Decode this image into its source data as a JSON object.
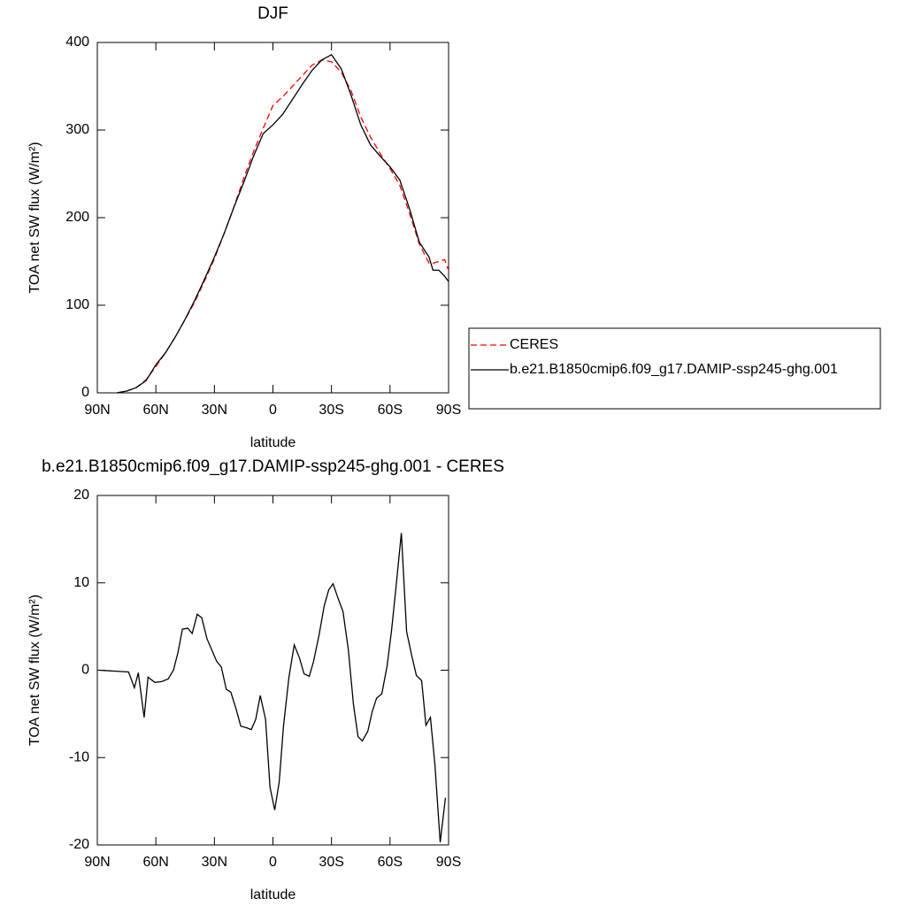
{
  "chart_data": [
    {
      "type": "line",
      "title": "DJF",
      "xlabel": "latitude",
      "ylabel": "TOA net SW flux (W/m²)",
      "x": [
        80,
        75,
        70,
        65,
        60,
        55,
        50,
        45,
        40,
        35,
        30,
        25,
        20,
        15,
        10,
        5,
        0,
        -5,
        -10,
        -15,
        -20,
        -25,
        -30,
        -35,
        -40,
        -45,
        -50,
        -55,
        -60,
        -65,
        -70,
        -75,
        -80,
        -82,
        -85,
        -88,
        -90
      ],
      "series": [
        {
          "name": "CERES",
          "color": "#ff0000",
          "dashed": true,
          "values": [
            0,
            2,
            6,
            15,
            30,
            46,
            64,
            84,
            104,
            128,
            153,
            182,
            212,
            245,
            275,
            302,
            328,
            338,
            350,
            362,
            374,
            380,
            378,
            366,
            345,
            315,
            292,
            273,
            256,
            237,
            205,
            170,
            148,
            148,
            150,
            152,
            140
          ]
        },
        {
          "name": "b.e21.B1850cmip6.f09_g17.DAMIP-ssp245-ghg.001",
          "color": "#000000",
          "dashed": false,
          "values": [
            0,
            2,
            6,
            14,
            32,
            46,
            64,
            84,
            106,
            130,
            155,
            182,
            212,
            240,
            270,
            296,
            306,
            318,
            335,
            352,
            368,
            380,
            386,
            370,
            340,
            306,
            283,
            270,
            258,
            243,
            210,
            172,
            155,
            140,
            140,
            133,
            127
          ]
        }
      ],
      "xlim": [
        90,
        -90
      ],
      "xticks": [
        {
          "value": 90,
          "label": "90N"
        },
        {
          "value": 60,
          "label": "60N"
        },
        {
          "value": 30,
          "label": "30N"
        },
        0,
        {
          "value": -30,
          "label": "30S"
        },
        {
          "value": -60,
          "label": "60S"
        },
        {
          "value": -90,
          "label": "90S"
        }
      ],
      "ylim": [
        0,
        400
      ],
      "yticks": [
        0,
        100,
        200,
        300,
        400
      ],
      "legend": "right"
    },
    {
      "type": "line",
      "title": "b.e21.B1850cmip6.f09_g17.DAMIP-ssp245-ghg.001 - CERES",
      "xlabel": "latitude",
      "ylabel": "TOA net SW flux (W/m²)",
      "x": [
        89,
        74,
        71,
        69,
        66,
        64,
        60.5,
        57,
        53.7,
        51,
        48.7,
        46.4,
        43.6,
        41.4,
        38.8,
        36.5,
        33.8,
        31.1,
        28.8,
        26.5,
        23.9,
        21.6,
        18.8,
        16.5,
        13.4,
        11.1,
        8.8,
        6.5,
        3.8,
        1.5,
        -0.9,
        -3.2,
        -5.4,
        -8.2,
        -10.9,
        -13.6,
        -15.9,
        -18.6,
        -20.8,
        -23.6,
        -26.3,
        -28.6,
        -30.8,
        -33.1,
        -35.9,
        -38.6,
        -41.3,
        -43.6,
        -45.8,
        -48.6,
        -50.8,
        -53.1,
        -55.8,
        -58.5,
        -60.8,
        -63.1,
        -65.8,
        -68.5,
        -71.2,
        -73.5,
        -76.2,
        -78.4,
        -80.7,
        -83,
        -85.7,
        -88.4
      ],
      "series": [
        {
          "color": "#000000",
          "dashed": false,
          "values": [
            0,
            -0.2,
            -2,
            -0.3,
            -5.4,
            -0.8,
            -1.4,
            -1.3,
            -1,
            0,
            2,
            4.7,
            4.8,
            4.2,
            6.4,
            6,
            3.6,
            2.2,
            1,
            0.4,
            -2.2,
            -2.5,
            -4.5,
            -6.4,
            -6.6,
            -6.8,
            -5.6,
            -2.9,
            -5.6,
            -13.4,
            -16,
            -12.8,
            -6.4,
            -0.8,
            2.9,
            1.4,
            -0.4,
            -0.7,
            1,
            4,
            7.4,
            9.2,
            9.9,
            8.4,
            6.7,
            2.4,
            -4,
            -7.6,
            -8.1,
            -7,
            -4.8,
            -3.2,
            -2.7,
            0.5,
            4.6,
            9.6,
            15.7,
            4.4,
            1.6,
            -0.6,
            -1.2,
            -6.3,
            -5.4,
            -10.8,
            -19.7,
            -14.6
          ]
        }
      ],
      "xlim": [
        90,
        -90
      ],
      "xticks": [
        {
          "value": 90,
          "label": "90N"
        },
        {
          "value": 60,
          "label": "60N"
        },
        {
          "value": 30,
          "label": "30N"
        },
        0,
        {
          "value": -30,
          "label": "30S"
        },
        {
          "value": -60,
          "label": "60S"
        },
        {
          "value": -90,
          "label": "90S"
        }
      ],
      "ylim": [
        -20,
        20
      ],
      "yticks": [
        -20,
        -10,
        0,
        10,
        20
      ]
    }
  ]
}
